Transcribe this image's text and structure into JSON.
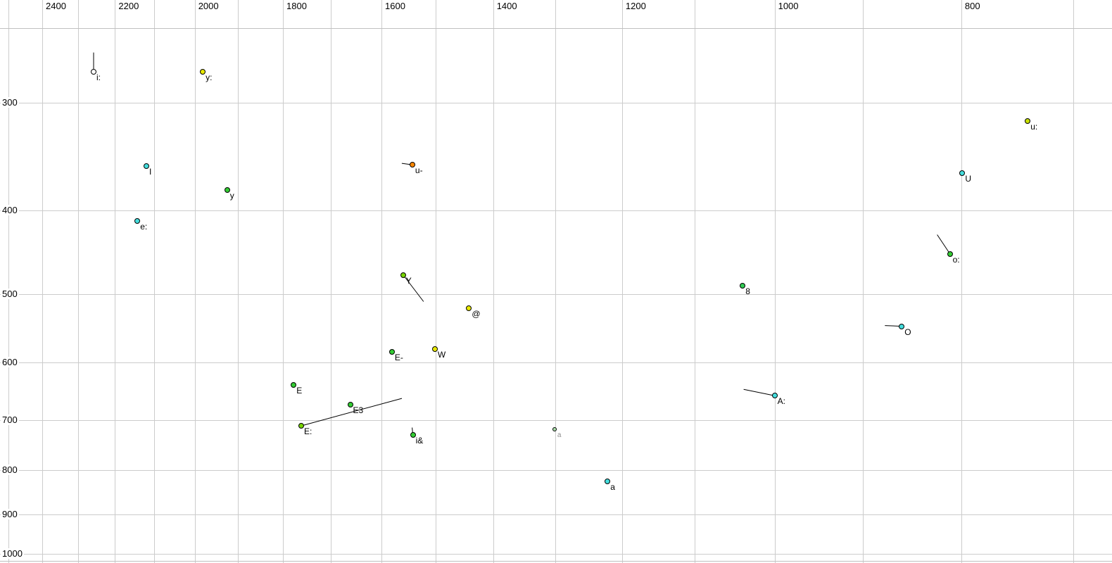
{
  "chart_data": {
    "type": "scatter",
    "description": "Vowel formant scatter plot, log-log axes, x reversed",
    "x_axis": {
      "scale": "log",
      "reversed": true,
      "tick_values": [
        2400,
        2200,
        2000,
        1800,
        1600,
        1400,
        1200,
        1000,
        800
      ],
      "tick_labels": [
        "2400",
        "2200",
        "2000",
        "1800",
        "1600",
        "1400",
        "1200",
        "1000",
        "800"
      ],
      "gridline_values": [
        2500,
        2400,
        2300,
        2200,
        2100,
        2000,
        1900,
        1800,
        1700,
        1600,
        1500,
        1400,
        1300,
        1200,
        1100,
        1000,
        900,
        800,
        700
      ],
      "range": [
        2520,
        680
      ]
    },
    "y_axis": {
      "scale": "log",
      "tick_values": [
        300,
        400,
        500,
        600,
        700,
        800,
        900,
        1000
      ],
      "tick_labels": [
        "300",
        "400",
        "500",
        "600",
        "700",
        "800",
        "900",
        "1000"
      ],
      "gridline_values": [
        300,
        400,
        500,
        600,
        700,
        800,
        900,
        1000
      ],
      "range": [
        248,
        1030
      ]
    },
    "points": [
      {
        "label": "i:",
        "f2": 2257,
        "f1": 276,
        "color": "#ffffff",
        "tail": [
          0,
          -27
        ]
      },
      {
        "label": "y:",
        "f2": 1981,
        "f1": 276,
        "color": "#e8e800"
      },
      {
        "label": "u:",
        "f2": 739,
        "f1": 315,
        "color": "#c8e000"
      },
      {
        "label": "I",
        "f2": 2119,
        "f1": 355,
        "color": "#44dddd"
      },
      {
        "label": "u-",
        "f2": 1542,
        "f1": 354,
        "color": "#ff8800",
        "tail": [
          -15,
          -2
        ]
      },
      {
        "label": "U",
        "f2": 799,
        "f1": 362,
        "color": "#44dddd"
      },
      {
        "label": "y",
        "f2": 1924,
        "f1": 379,
        "color": "#33cc33"
      },
      {
        "label": "e:",
        "f2": 2142,
        "f1": 411,
        "color": "#44dddd"
      },
      {
        "label": "o:",
        "f2": 811,
        "f1": 449,
        "color": "#33cc33",
        "tail": [
          -18,
          -27
        ]
      },
      {
        "label": "Y",
        "f2": 1559,
        "f1": 475,
        "color": "#77d400",
        "tail": [
          29,
          38
        ]
      },
      {
        "label": "8",
        "f2": 1039,
        "f1": 489,
        "color": "#33cc55"
      },
      {
        "label": "@",
        "f2": 1441,
        "f1": 519,
        "color": "#e8e800"
      },
      {
        "label": "O",
        "f2": 859,
        "f1": 545,
        "color": "#44dddd",
        "tail": [
          -24,
          -1
        ]
      },
      {
        "label": "E-",
        "f2": 1580,
        "f1": 584,
        "color": "#33cc33"
      },
      {
        "label": "W",
        "f2": 1501,
        "f1": 579,
        "color": "#e8e800"
      },
      {
        "label": "E",
        "f2": 1777,
        "f1": 638,
        "color": "#33cc33"
      },
      {
        "label": "E3",
        "f2": 1661,
        "f1": 672,
        "color": "#33cc33"
      },
      {
        "label": "A:",
        "f2": 1000,
        "f1": 656,
        "color": "#44dddd",
        "tail": [
          -44,
          -9
        ]
      },
      {
        "label": "E:",
        "f2": 1761,
        "f1": 711,
        "color": "#77d400",
        "tail": [
          143,
          -39
        ]
      },
      {
        "label": "i&",
        "f2": 1541,
        "f1": 728,
        "color": "#33cc33",
        "tail": [
          -1,
          -10
        ]
      },
      {
        "label": "a",
        "f2": 1301,
        "f1": 718,
        "color": "#aaddaa",
        "label_color": "#909090",
        "dot_size": 6,
        "label_size": 10
      },
      {
        "label": "a",
        "f2": 1221,
        "f1": 825,
        "color": "#44dddd"
      }
    ]
  },
  "style": {
    "background": "#ffffff",
    "grid_color": "#cccccc",
    "frame_color": "#c0c0c0",
    "text_color": "#000000",
    "point_outline": "#000000",
    "trajectory_color": "#000000"
  }
}
